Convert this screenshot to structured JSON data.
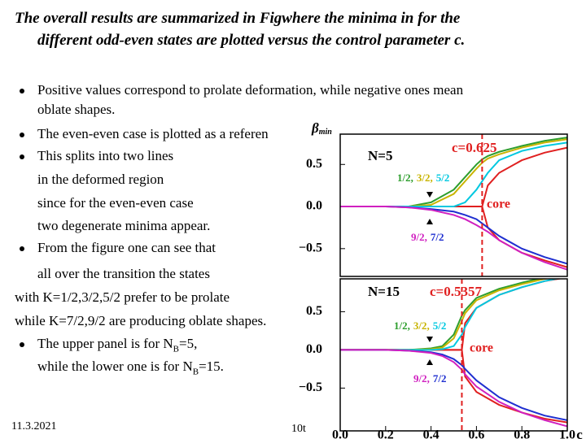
{
  "slide": {
    "title": [
      "The overall results are summarized in Figwhere the minima in  for the",
      "different odd-even states are plotted versus the control parameter c."
    ],
    "items": [
      {
        "bullet": true,
        "lines": [
          "Positive  values correspond to prolate deformation, while negative ones mean",
          "oblate shapes."
        ]
      },
      {
        "bullet": true,
        "lines": [
          "The even-even case is plotted as a referen"
        ]
      },
      {
        "bullet": true,
        "lines": [
          "This splits into two lines",
          "in the deformed region",
          "since for the even-even case",
          "two degenerate minima appear."
        ]
      },
      {
        "bullet": true,
        "lines": [
          "From the figure one can see that",
          "all over the transition the states"
        ]
      },
      {
        "bullet": false,
        "lines": [
          "with K=1/2,3/2,5/2 prefer to be prolate",
          "while K=7/2,9/2 are producing oblate shapes."
        ]
      },
      {
        "bullet": true,
        "lines": [
          [
            "The upper panel is for N",
            "B",
            "=5,"
          ],
          [
            "while the lower one is for N",
            "B",
            "=15."
          ]
        ]
      }
    ],
    "date": "11.3.2021",
    "page": "10t"
  },
  "chart_data": [
    {
      "type": "line",
      "ylabel": "β",
      "ylabel_sub": "min",
      "x": [
        0,
        0.1,
        0.2,
        0.3,
        0.4,
        0.5,
        0.55,
        0.6,
        0.625,
        0.65,
        0.7,
        0.8,
        0.9,
        1.0
      ],
      "xlim": [
        0,
        1.0
      ],
      "ylim": [
        -0.83,
        0.86
      ],
      "yticks": [
        0.5,
        {
          "value": 0,
          "label": "0.0"
        },
        {
          "value": -0.5,
          "label": "−0.5"
        }
      ],
      "series": [
        {
          "color": "#e02020",
          "values": [
            0,
            0,
            0,
            0,
            0,
            0,
            0,
            0,
            0,
            0.25,
            0.4,
            0.55,
            0.64,
            0.7
          ]
        },
        {
          "color": "#e02020",
          "values": [
            0,
            0,
            0,
            0,
            0,
            0,
            0,
            0,
            0,
            -0.25,
            -0.4,
            -0.55,
            -0.64,
            -0.72
          ]
        },
        {
          "color": "#2e9e2e",
          "values": [
            0,
            0,
            0,
            0,
            0.05,
            0.2,
            0.35,
            0.5,
            0.56,
            0.6,
            0.65,
            0.72,
            0.78,
            0.82
          ]
        },
        {
          "color": "#c8b400",
          "values": [
            0,
            0,
            0,
            0,
            0.02,
            0.15,
            0.3,
            0.45,
            0.52,
            0.57,
            0.62,
            0.7,
            0.76,
            0.8
          ]
        },
        {
          "color": "#00c8e0",
          "values": [
            0,
            0,
            0,
            0,
            0,
            0,
            0.05,
            0.2,
            0.3,
            0.4,
            0.55,
            0.66,
            0.72,
            0.76
          ]
        },
        {
          "color": "#1f2fd0",
          "values": [
            0,
            0,
            0,
            -0.01,
            -0.03,
            -0.06,
            -0.1,
            -0.15,
            -0.2,
            -0.25,
            -0.35,
            -0.5,
            -0.6,
            -0.68
          ]
        },
        {
          "color": "#d020c0",
          "values": [
            0,
            0,
            0,
            -0.01,
            -0.04,
            -0.1,
            -0.15,
            -0.22,
            -0.26,
            -0.3,
            -0.4,
            -0.55,
            -0.66,
            -0.75
          ]
        }
      ],
      "panel_label": "N=5",
      "critical": {
        "value": 0.625,
        "label": "c=0.625"
      },
      "critical_color": "#e02020",
      "core_label": "core",
      "prolate_labels": [
        {
          "text": "1/2,",
          "color": "#2e9e2e"
        },
        {
          "text": "3/2,",
          "color": "#c8b400"
        },
        {
          "text": "5/2",
          "color": "#00c8e0"
        }
      ],
      "oblate_labels": [
        {
          "text": "9/2,",
          "color": "#d020c0"
        },
        {
          "text": "7/2",
          "color": "#1f2fd0"
        }
      ]
    },
    {
      "type": "line",
      "xlabel": "c",
      "x": [
        0,
        0.1,
        0.2,
        0.3,
        0.4,
        0.45,
        0.5,
        0.5357,
        0.55,
        0.6,
        0.7,
        0.8,
        0.9,
        1.0
      ],
      "xlim": [
        0,
        1.0
      ],
      "ylim": [
        -1.06,
        0.93
      ],
      "xticks": [
        {
          "value": 0,
          "label": "0.0"
        },
        0.2,
        0.4,
        0.6,
        0.8,
        {
          "value": 1.0,
          "label": "1.0"
        }
      ],
      "yticks": [
        0.5,
        {
          "value": 0,
          "label": "0.0"
        },
        {
          "value": -0.5,
          "label": "−0.5"
        }
      ],
      "series": [
        {
          "color": "#e02020",
          "values": [
            0,
            0,
            0,
            0,
            0,
            0,
            0,
            0,
            0.35,
            0.55,
            0.72,
            0.82,
            0.9,
            0.95
          ]
        },
        {
          "color": "#e02020",
          "values": [
            0,
            0,
            0,
            0,
            0,
            0,
            0,
            0,
            -0.35,
            -0.55,
            -0.72,
            -0.82,
            -0.9,
            -0.95
          ]
        },
        {
          "color": "#2e9e2e",
          "values": [
            0,
            0,
            0,
            0,
            0.02,
            0.05,
            0.2,
            0.45,
            0.52,
            0.68,
            0.8,
            0.88,
            0.95,
            1.0
          ]
        },
        {
          "color": "#c8b400",
          "values": [
            0,
            0,
            0,
            0,
            0.01,
            0.03,
            0.15,
            0.38,
            0.48,
            0.65,
            0.78,
            0.86,
            0.93,
            0.98
          ]
        },
        {
          "color": "#00c8e0",
          "values": [
            0,
            0,
            0,
            0,
            0,
            0.01,
            0.05,
            0.2,
            0.3,
            0.55,
            0.72,
            0.82,
            0.9,
            0.96
          ]
        },
        {
          "color": "#1f2fd0",
          "values": [
            0,
            0,
            0,
            -0.01,
            -0.03,
            -0.06,
            -0.12,
            -0.2,
            -0.25,
            -0.4,
            -0.62,
            -0.76,
            -0.86,
            -0.92
          ]
        },
        {
          "color": "#d020c0",
          "values": [
            0,
            0,
            0,
            -0.01,
            -0.04,
            -0.08,
            -0.16,
            -0.26,
            -0.32,
            -0.48,
            -0.68,
            -0.82,
            -0.92,
            -1.0
          ]
        }
      ],
      "panel_label": "N=15",
      "critical": {
        "value": 0.5357,
        "label": "c=0.5357"
      },
      "critical_color": "#e02020",
      "core_label": "core",
      "prolate_labels": [
        {
          "text": "1/2,",
          "color": "#2e9e2e"
        },
        {
          "text": "3/2,",
          "color": "#c8b400"
        },
        {
          "text": "5/2",
          "color": "#00c8e0"
        }
      ],
      "oblate_labels": [
        {
          "text": "9/2,",
          "color": "#d020c0"
        },
        {
          "text": "7/2",
          "color": "#1f2fd0"
        }
      ]
    }
  ]
}
